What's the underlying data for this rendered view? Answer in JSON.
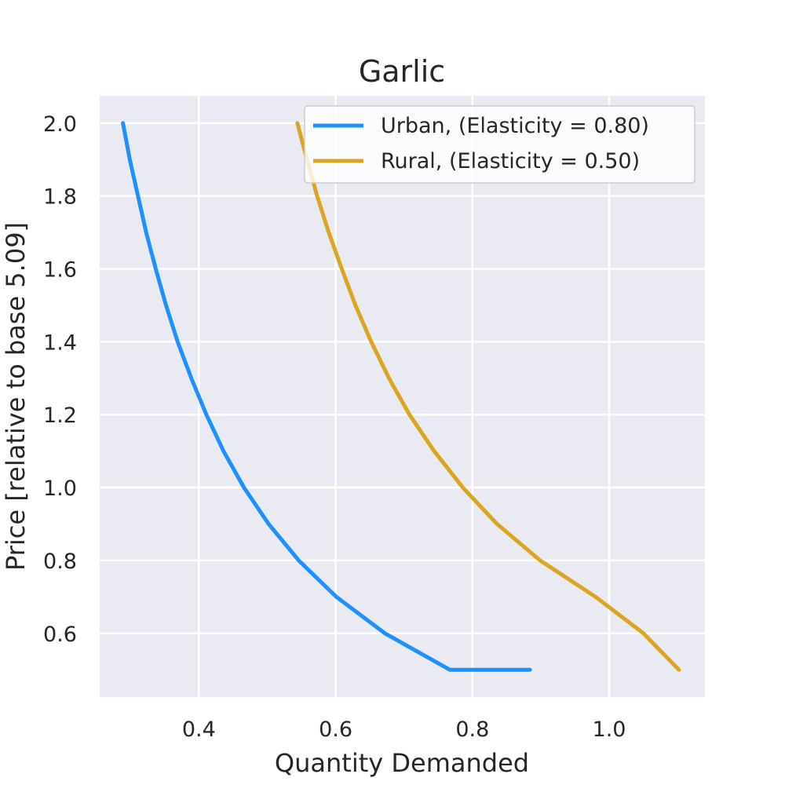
{
  "chart_data": {
    "type": "line",
    "title": "Garlic",
    "xlabel": "Quantity Demanded",
    "ylabel": "Price [relative to base 5.09]",
    "xlim": [
      0.255,
      1.14
    ],
    "ylim": [
      0.425,
      2.075
    ],
    "xticks": [
      0.4,
      0.6,
      0.8,
      1.0
    ],
    "xtick_labels": [
      "0.4",
      "0.6",
      "0.8",
      "1.0"
    ],
    "yticks": [
      0.6,
      0.8,
      1.0,
      1.2,
      1.4,
      1.6,
      1.8,
      2.0
    ],
    "ytick_labels": [
      "0.6",
      "0.8",
      "1.0",
      "1.2",
      "1.4",
      "1.6",
      "1.8",
      "2.0"
    ],
    "grid": true,
    "legend_position": "top-right",
    "series": [
      {
        "name": "Urban, (Elasticity = 0.80)",
        "color": "#1e90ff",
        "elasticity": 0.8,
        "points": [
          [
            0.289,
            2.0
          ],
          [
            0.299,
            1.9
          ],
          [
            0.311,
            1.8
          ],
          [
            0.323,
            1.7
          ],
          [
            0.337,
            1.6
          ],
          [
            0.352,
            1.5
          ],
          [
            0.369,
            1.4
          ],
          [
            0.389,
            1.3
          ],
          [
            0.411,
            1.2
          ],
          [
            0.436,
            1.1
          ],
          [
            0.466,
            1.0
          ],
          [
            0.502,
            0.9
          ],
          [
            0.546,
            0.8
          ],
          [
            0.601,
            0.7
          ],
          [
            0.672,
            0.6
          ],
          [
            0.767,
            0.5
          ],
          [
            0.884,
            0.5
          ]
        ]
      },
      {
        "name": "Rural, (Elasticity = 0.50)",
        "color": "#daa520",
        "elasticity": 0.5,
        "points": [
          [
            0.544,
            2.0
          ],
          [
            0.558,
            1.9
          ],
          [
            0.573,
            1.8
          ],
          [
            0.59,
            1.7
          ],
          [
            0.609,
            1.6
          ],
          [
            0.629,
            1.5
          ],
          [
            0.652,
            1.4
          ],
          [
            0.678,
            1.3
          ],
          [
            0.708,
            1.2
          ],
          [
            0.744,
            1.1
          ],
          [
            0.786,
            1.0
          ],
          [
            0.836,
            0.9
          ],
          [
            0.899,
            0.8
          ],
          [
            0.98,
            0.7
          ],
          [
            1.05,
            0.6
          ],
          [
            1.102,
            0.5
          ]
        ]
      }
    ]
  }
}
